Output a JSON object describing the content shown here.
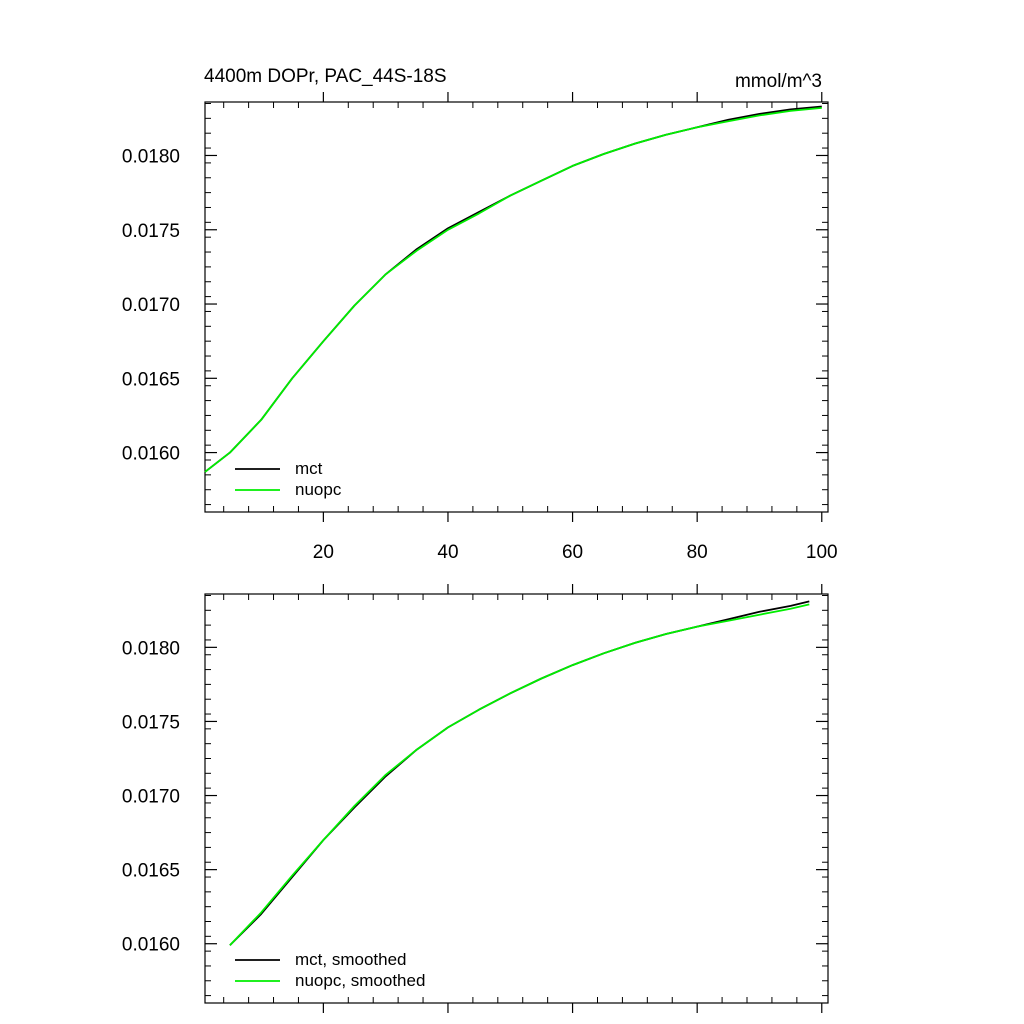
{
  "figure": {
    "title_left": "4400m DOPr, PAC_44S-18S",
    "title_right": "mmol/m^3"
  },
  "chart_data": [
    {
      "type": "line",
      "title": "4400m DOPr, PAC_44S-18S",
      "units": "mmol/m^3",
      "xlim": [
        1,
        101
      ],
      "ylim": [
        0.0156,
        0.01836
      ],
      "x_ticks": [
        20,
        40,
        60,
        80,
        100
      ],
      "x_tick_labels": [
        "20",
        "40",
        "60",
        "80",
        "100"
      ],
      "y_ticks": [
        0.016,
        0.0165,
        0.017,
        0.0175,
        0.018
      ],
      "y_tick_labels": [
        "0.0160",
        "0.0165",
        "0.0170",
        "0.0175",
        "0.0180"
      ],
      "legend_position": "bottom-left",
      "grid": false,
      "series": [
        {
          "name": "mct",
          "color": "#000000",
          "x": [
            1,
            5,
            10,
            15,
            20,
            25,
            30,
            35,
            40,
            45,
            50,
            55,
            60,
            65,
            70,
            75,
            80,
            85,
            90,
            95,
            100
          ],
          "y": [
            0.01587,
            0.016,
            0.01622,
            0.0165,
            0.01675,
            0.01699,
            0.0172,
            0.01737,
            0.01751,
            0.01762,
            0.01773,
            0.01783,
            0.01793,
            0.01801,
            0.01808,
            0.01814,
            0.01819,
            0.01824,
            0.01828,
            0.01831,
            0.01833
          ]
        },
        {
          "name": "nuopc",
          "color": "#00ee00",
          "x": [
            1,
            5,
            10,
            15,
            20,
            25,
            30,
            35,
            40,
            45,
            50,
            55,
            60,
            65,
            70,
            75,
            80,
            85,
            90,
            95,
            100
          ],
          "y": [
            0.01587,
            0.016,
            0.01622,
            0.0165,
            0.01675,
            0.01699,
            0.0172,
            0.01736,
            0.0175,
            0.01761,
            0.01773,
            0.01783,
            0.01793,
            0.01801,
            0.01808,
            0.01814,
            0.01819,
            0.01823,
            0.01827,
            0.0183,
            0.01832
          ]
        }
      ]
    },
    {
      "type": "line",
      "xlim": [
        1,
        101
      ],
      "ylim": [
        0.0156,
        0.01836
      ],
      "x_ticks": [
        20,
        40,
        60,
        80,
        100
      ],
      "y_ticks": [
        0.016,
        0.0165,
        0.017,
        0.0175,
        0.018
      ],
      "y_tick_labels": [
        "0.0160",
        "0.0165",
        "0.0170",
        "0.0175",
        "0.0180"
      ],
      "legend_position": "bottom-left",
      "grid": false,
      "series": [
        {
          "name": "mct, smoothed",
          "color": "#000000",
          "x": [
            5,
            10,
            15,
            20,
            25,
            30,
            35,
            40,
            45,
            50,
            55,
            60,
            65,
            70,
            75,
            80,
            85,
            90,
            95,
            98
          ],
          "y": [
            0.01599,
            0.0162,
            0.01645,
            0.0167,
            0.01692,
            0.01713,
            0.01731,
            0.01746,
            0.01758,
            0.01769,
            0.01779,
            0.01788,
            0.01796,
            0.01803,
            0.01809,
            0.01814,
            0.01819,
            0.01824,
            0.01828,
            0.01831
          ]
        },
        {
          "name": "nuopc, smoothed",
          "color": "#00ee00",
          "x": [
            5,
            10,
            15,
            20,
            25,
            30,
            35,
            40,
            45,
            50,
            55,
            60,
            65,
            70,
            75,
            80,
            85,
            90,
            95,
            98
          ],
          "y": [
            0.01599,
            0.01621,
            0.01646,
            0.0167,
            0.01693,
            0.01714,
            0.01731,
            0.01746,
            0.01758,
            0.01769,
            0.01779,
            0.01788,
            0.01796,
            0.01803,
            0.01809,
            0.01814,
            0.01818,
            0.01822,
            0.01826,
            0.01829
          ]
        }
      ]
    }
  ]
}
